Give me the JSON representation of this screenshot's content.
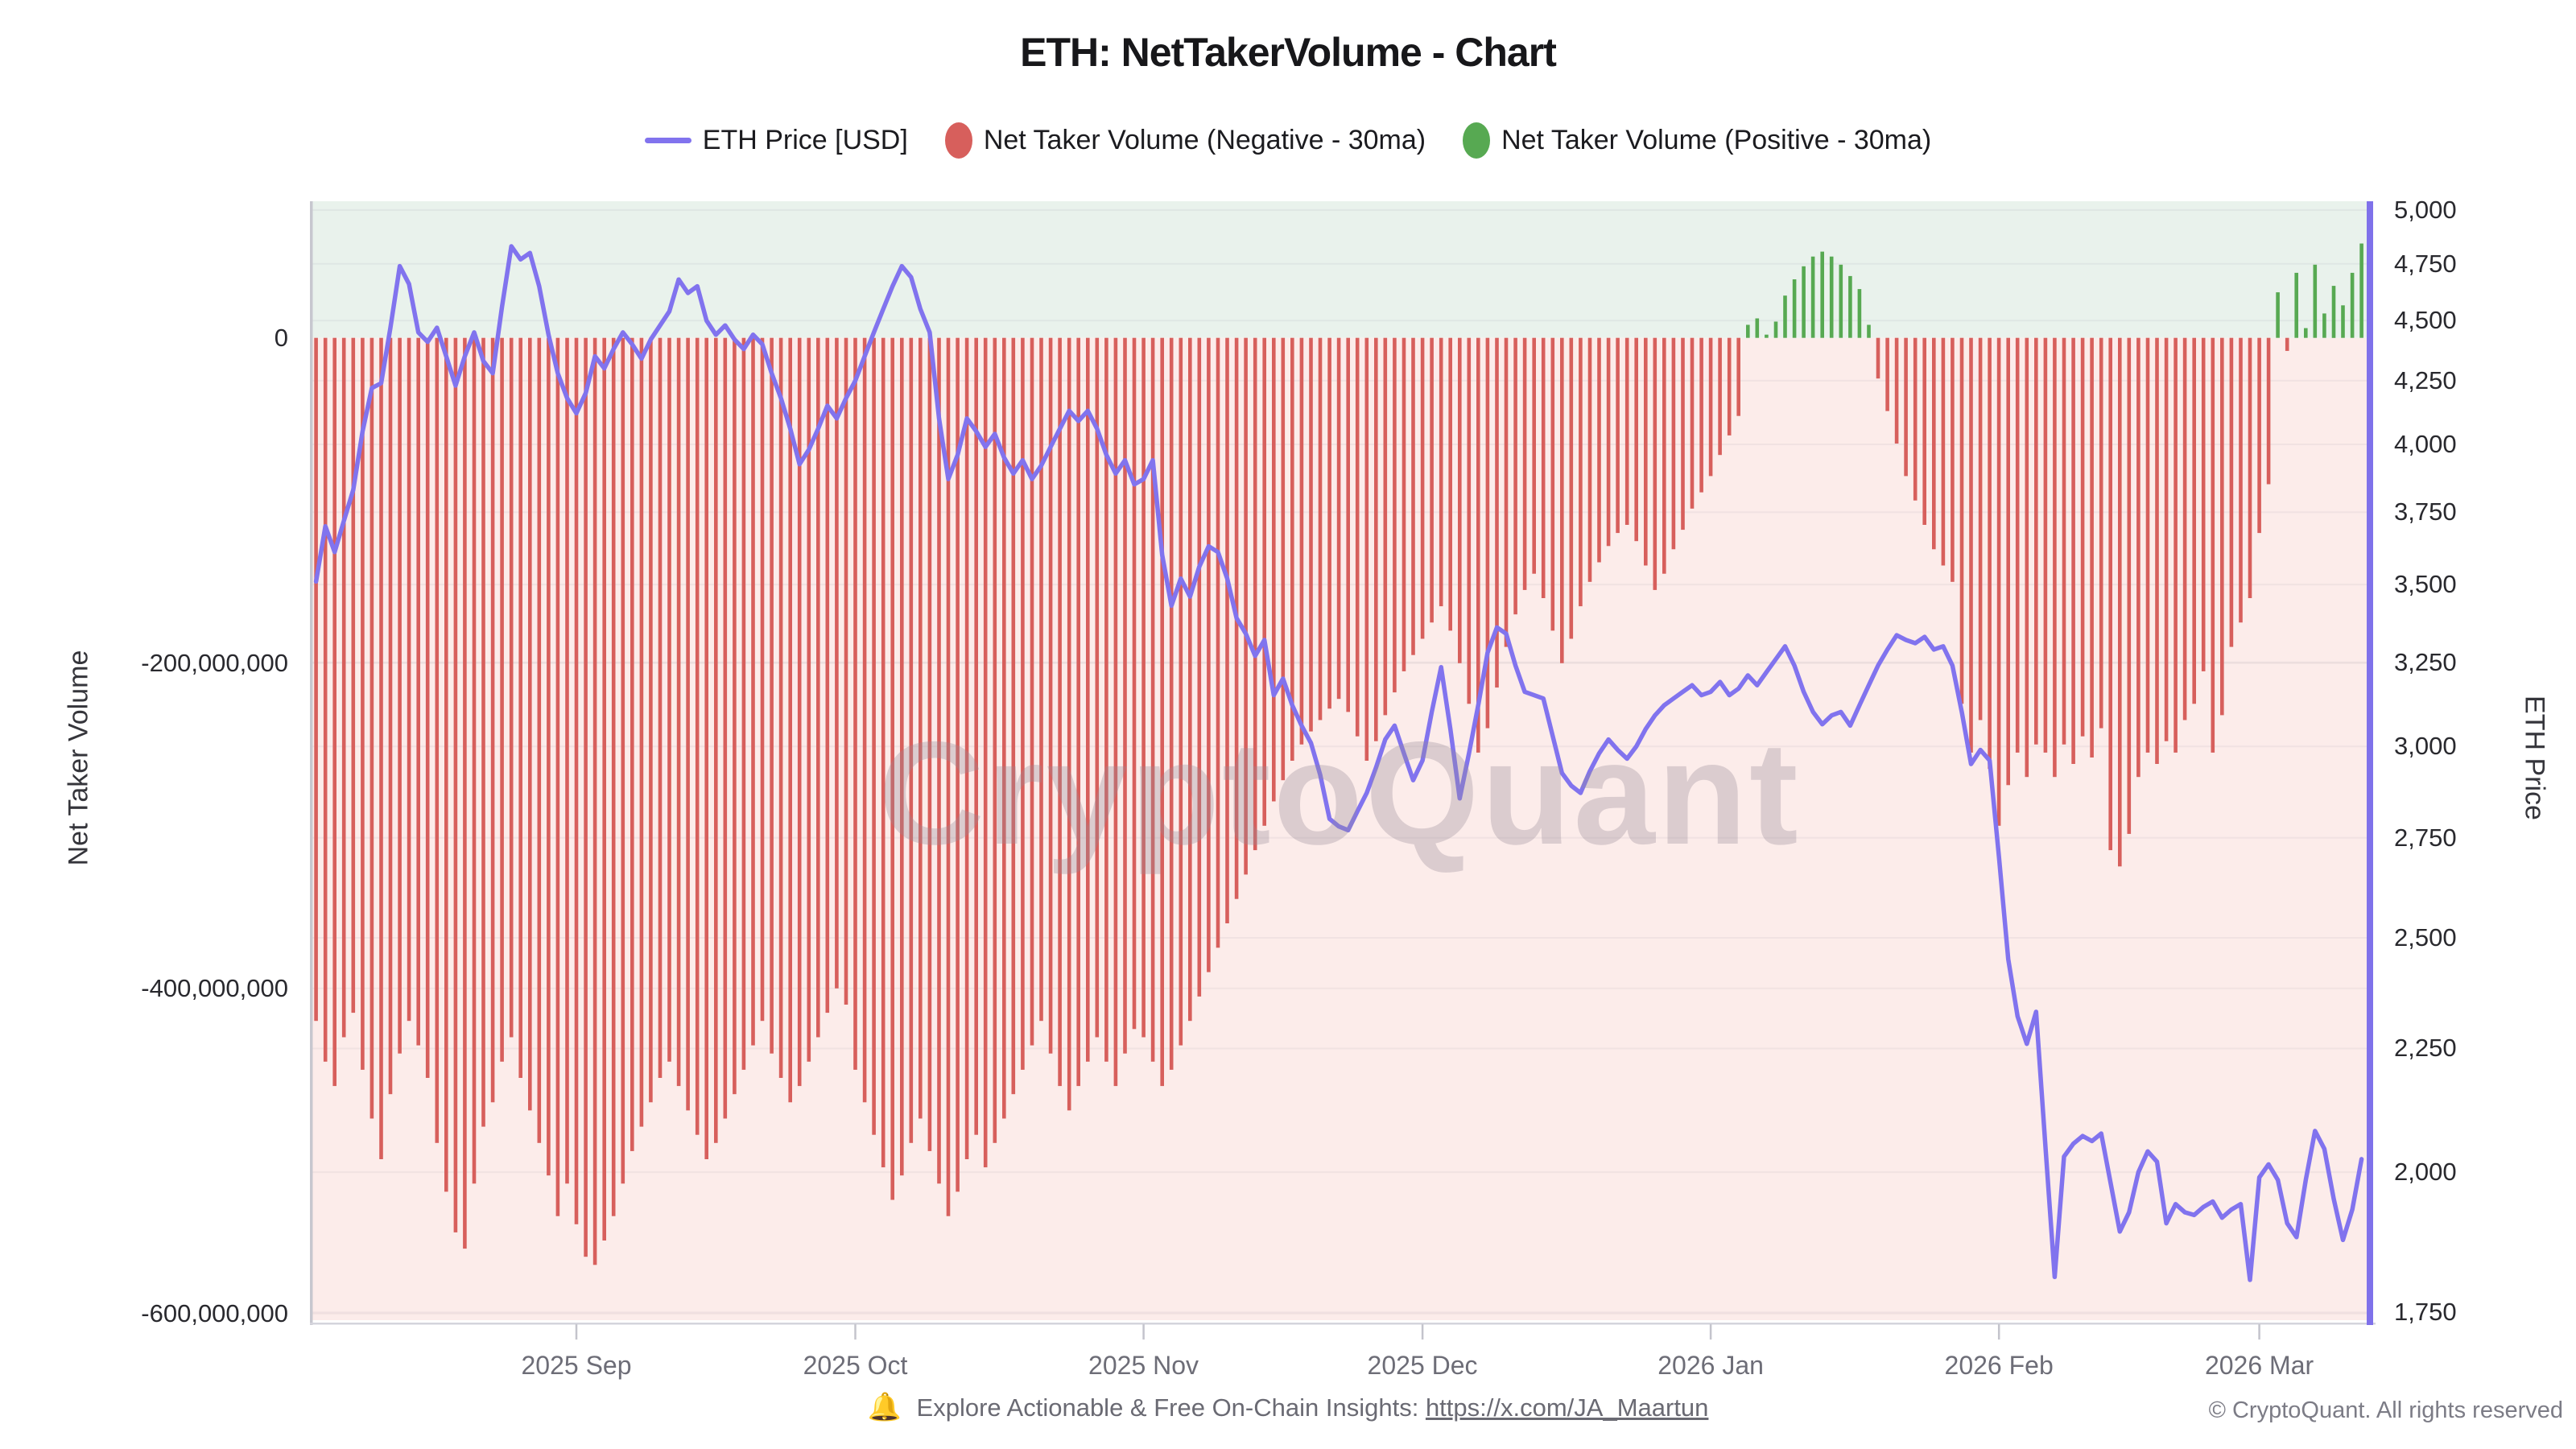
{
  "page": {
    "title": "ETH: NetTakerVolume - Chart"
  },
  "legend": {
    "items": [
      {
        "label": "ETH Price [USD]",
        "marker": "line-icon",
        "color": "#8173ee"
      },
      {
        "label": "Net Taker Volume (Negative - 30ma)",
        "marker": "circle-icon",
        "color": "#d75f5c"
      },
      {
        "label": "Net Taker Volume (Positive - 30ma)",
        "marker": "circle-icon",
        "color": "#57a952"
      }
    ]
  },
  "watermark": "CryptoQuant",
  "footer": {
    "bell_icon": "🔔",
    "text": "Explore Actionable & Free On-Chain Insights:",
    "link": "https://x.com/JA_Maartun",
    "copyright": "© CryptoQuant. All rights reserved"
  },
  "chart_data": {
    "type": "mixed",
    "title": "ETH: NetTakerVolume - Chart",
    "x": {
      "freq": "daily",
      "start": "2025-08-04",
      "end": "2026-03-12",
      "count": 221,
      "ticks": [
        {
          "label": "2025 Sep",
          "day": 28
        },
        {
          "label": "2025 Oct",
          "day": 58
        },
        {
          "label": "2025 Nov",
          "day": 89
        },
        {
          "label": "2025 Dec",
          "day": 119
        },
        {
          "label": "2026 Jan",
          "day": 150
        },
        {
          "label": "2026 Feb",
          "day": 181
        },
        {
          "label": "2026 Mar",
          "day": 209
        }
      ]
    },
    "left_axis": {
      "label": "Net Taker Volume",
      "scale": "linear",
      "range_top": 84000000,
      "range_bottom": -604000000,
      "ticks": [
        {
          "value": 0,
          "label": "0"
        },
        {
          "value": -200000000,
          "label": "-200,000,000"
        },
        {
          "value": -400000000,
          "label": "-400,000,000"
        },
        {
          "value": -600000000,
          "label": "-600,000,000"
        }
      ]
    },
    "right_axis": {
      "label": "ETH Price",
      "scale": "log",
      "range_top": 5042,
      "range_bottom": 1737,
      "ticks": [
        {
          "value": 5000,
          "label": "5,000"
        },
        {
          "value": 4750,
          "label": "4,750"
        },
        {
          "value": 4500,
          "label": "4,500"
        },
        {
          "value": 4250,
          "label": "4,250"
        },
        {
          "value": 4000,
          "label": "4,000"
        },
        {
          "value": 3750,
          "label": "3,750"
        },
        {
          "value": 3500,
          "label": "3,500"
        },
        {
          "value": 3250,
          "label": "3,250"
        },
        {
          "value": 3000,
          "label": "3,000"
        },
        {
          "value": 2750,
          "label": "2,750"
        },
        {
          "value": 2500,
          "label": "2,500"
        },
        {
          "value": 2250,
          "label": "2,250"
        },
        {
          "value": 2000,
          "label": "2,000"
        },
        {
          "value": 1750,
          "label": "1,750"
        }
      ]
    },
    "plot_bg": {
      "positive_region": "#e9f2ec",
      "negative_region": "#fcecea"
    },
    "grid": true,
    "series": [
      {
        "name": "Net Taker Volume (30ma)",
        "type": "bar",
        "axis": "left",
        "unit": "USD millions",
        "color_negative": "#d75f5c",
        "color_positive": "#57a952",
        "values_millions": [
          -420,
          -445,
          -460,
          -430,
          -415,
          -450,
          -480,
          -505,
          -465,
          -440,
          -420,
          -435,
          -455,
          -495,
          -525,
          -550,
          -560,
          -520,
          -485,
          -470,
          -445,
          -430,
          -455,
          -475,
          -495,
          -515,
          -540,
          -520,
          -545,
          -565,
          -570,
          -555,
          -540,
          -520,
          -500,
          -485,
          -470,
          -455,
          -445,
          -460,
          -475,
          -490,
          -505,
          -495,
          -480,
          -465,
          -450,
          -435,
          -420,
          -440,
          -455,
          -470,
          -460,
          -445,
          -430,
          -415,
          -400,
          -410,
          -450,
          -470,
          -490,
          -510,
          -530,
          -515,
          -495,
          -480,
          -500,
          -520,
          -540,
          -525,
          -505,
          -490,
          -510,
          -495,
          -480,
          -465,
          -450,
          -435,
          -420,
          -440,
          -460,
          -475,
          -460,
          -445,
          -430,
          -445,
          -460,
          -440,
          -425,
          -430,
          -445,
          -460,
          -450,
          -435,
          -420,
          -405,
          -390,
          -375,
          -360,
          -345,
          -330,
          -315,
          -300,
          -285,
          -272,
          -260,
          -250,
          -242,
          -235,
          -228,
          -222,
          -230,
          -245,
          -260,
          -248,
          -232,
          -218,
          -205,
          -195,
          -185,
          -175,
          -165,
          -180,
          -200,
          -225,
          -255,
          -240,
          -215,
          -190,
          -170,
          -155,
          -145,
          -160,
          -180,
          -200,
          -185,
          -165,
          -150,
          -138,
          -128,
          -120,
          -115,
          -125,
          -140,
          -155,
          -145,
          -130,
          -118,
          -105,
          -95,
          -85,
          -72,
          -60,
          -48,
          8,
          12,
          2,
          10,
          26,
          36,
          44,
          50,
          53,
          50,
          45,
          38,
          30,
          8,
          -25,
          -45,
          -65,
          -85,
          -100,
          -115,
          -130,
          -140,
          -150,
          -225,
          -255,
          -235,
          -265,
          -300,
          -275,
          -255,
          -270,
          -250,
          -255,
          -270,
          -250,
          -262,
          -245,
          -258,
          -240,
          -315,
          -325,
          -305,
          -270,
          -255,
          -262,
          -248,
          -255,
          -235,
          -225,
          -205,
          -255,
          -232,
          -190,
          -175,
          -160,
          -120,
          -90,
          28,
          -8,
          40,
          6,
          45,
          15,
          32,
          20,
          40,
          58
        ]
      },
      {
        "name": "ETH Price [USD]",
        "type": "line",
        "axis": "right",
        "unit": "USD",
        "color": "#8173ee",
        "values": [
          3510,
          3700,
          3610,
          3720,
          3830,
          4050,
          4220,
          4240,
          4470,
          4740,
          4660,
          4450,
          4410,
          4470,
          4350,
          4230,
          4350,
          4450,
          4330,
          4280,
          4560,
          4830,
          4770,
          4800,
          4650,
          4440,
          4280,
          4180,
          4120,
          4200,
          4350,
          4300,
          4380,
          4450,
          4400,
          4340,
          4420,
          4480,
          4540,
          4680,
          4620,
          4650,
          4500,
          4440,
          4480,
          4420,
          4380,
          4440,
          4400,
          4280,
          4180,
          4060,
          3925,
          3980,
          4060,
          4150,
          4100,
          4180,
          4250,
          4350,
          4450,
          4550,
          4650,
          4740,
          4690,
          4550,
          4450,
          4100,
          3870,
          3960,
          4100,
          4050,
          3990,
          4040,
          3950,
          3890,
          3940,
          3870,
          3920,
          3990,
          4060,
          4130,
          4090,
          4130,
          4060,
          3960,
          3890,
          3940,
          3850,
          3870,
          3940,
          3600,
          3430,
          3520,
          3460,
          3560,
          3630,
          3610,
          3520,
          3390,
          3340,
          3270,
          3320,
          3150,
          3200,
          3120,
          3060,
          3010,
          2920,
          2800,
          2780,
          2770,
          2820,
          2870,
          2940,
          3020,
          3060,
          2980,
          2905,
          2960,
          3100,
          3235,
          3050,
          2855,
          2980,
          3120,
          3280,
          3360,
          3340,
          3240,
          3160,
          3150,
          3140,
          3030,
          2925,
          2890,
          2870,
          2930,
          2980,
          3020,
          2990,
          2965,
          3000,
          3050,
          3090,
          3120,
          3140,
          3160,
          3180,
          3150,
          3160,
          3190,
          3150,
          3170,
          3210,
          3180,
          3220,
          3260,
          3300,
          3240,
          3160,
          3100,
          3064,
          3090,
          3100,
          3060,
          3120,
          3180,
          3240,
          3290,
          3335,
          3320,
          3310,
          3330,
          3290,
          3300,
          3240,
          3100,
          2950,
          2990,
          2960,
          2700,
          2450,
          2320,
          2260,
          2330,
          2050,
          1810,
          2030,
          2055,
          2070,
          2060,
          2075,
          1980,
          1890,
          1925,
          2000,
          2040,
          2020,
          1905,
          1940,
          1925,
          1920,
          1935,
          1945,
          1915,
          1930,
          1940,
          1805,
          1990,
          2015,
          1985,
          1905,
          1880,
          1985,
          2080,
          2045,
          1950,
          1875,
          1930,
          2025
        ]
      }
    ]
  }
}
